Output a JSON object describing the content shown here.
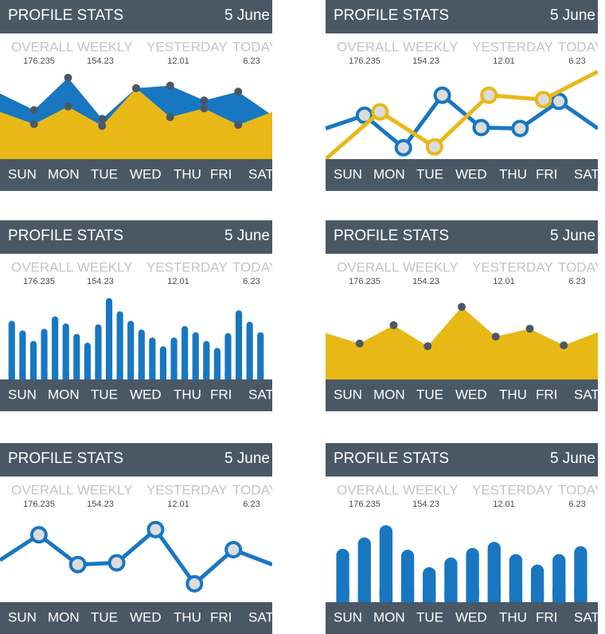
{
  "chart_data": [
    {
      "type": "area",
      "title": "PROFILE STATS",
      "date": "5 June",
      "stats": {
        "labels": [
          "OVERALL",
          "WEEKLY",
          "YESTERDAY",
          "TODAY"
        ],
        "values": [
          176.235,
          154.23,
          12.01,
          6.23
        ]
      },
      "day_labels": [
        "SUN",
        "MON",
        "TUE",
        "WED",
        "THU",
        "FRI",
        "SAT"
      ],
      "ylim": [
        0,
        100
      ],
      "series": [
        {
          "color": "#1877c1",
          "values": [
            75,
            56,
            93,
            46,
            81,
            84,
            67,
            77,
            50
          ]
        },
        {
          "color": "#e8b817",
          "values": [
            54,
            40,
            60,
            38,
            81,
            48,
            58,
            39,
            54
          ]
        }
      ]
    },
    {
      "type": "line",
      "title": "PROFILE STATS",
      "date": "5 June",
      "stats": {
        "labels": [
          "OVERALL",
          "WEEKLY",
          "YESTERDAY",
          "TODAY"
        ],
        "values": [
          176.235,
          154.23,
          12.01,
          6.23
        ]
      },
      "day_labels": [
        "SUN",
        "MON",
        "TUE",
        "WED",
        "THU",
        "FRI",
        "SAT"
      ],
      "ylim": [
        0,
        100
      ],
      "series": [
        {
          "color": "#1877c1",
          "values": [
            35,
            50,
            13,
            73,
            36,
            35,
            66,
            35
          ]
        },
        {
          "color": "#e8b817",
          "values": [
            0,
            54,
            14,
            73,
            68,
            100
          ]
        }
      ]
    },
    {
      "type": "bar",
      "title": "PROFILE STATS",
      "date": "5 June",
      "stats": {
        "labels": [
          "OVERALL",
          "WEEKLY",
          "YESTERDAY",
          "TODAY"
        ],
        "values": [
          176.235,
          154.23,
          12.01,
          6.23
        ]
      },
      "day_labels": [
        "SUN",
        "MON",
        "TUE",
        "WED",
        "THU",
        "FRI",
        "SAT"
      ],
      "ylim": [
        0,
        100
      ],
      "series": [
        {
          "color": "#1877c1",
          "values": [
            67,
            56,
            44,
            58,
            72,
            64,
            52,
            42,
            63,
            93,
            78,
            67,
            57,
            48,
            38,
            48,
            61,
            54,
            44,
            36,
            53,
            79,
            66,
            54
          ]
        }
      ]
    },
    {
      "type": "area",
      "title": "PROFILE STATS",
      "date": "5 June",
      "stats": {
        "labels": [
          "OVERALL",
          "WEEKLY",
          "YESTERDAY",
          "TODAY"
        ],
        "values": [
          176.235,
          154.23,
          12.01,
          6.23
        ]
      },
      "day_labels": [
        "SUN",
        "MON",
        "TUE",
        "WED",
        "THU",
        "FRI",
        "SAT"
      ],
      "ylim": [
        0,
        100
      ],
      "series": [
        {
          "color": "#e8b817",
          "values": [
            53,
            41,
            62,
            38,
            83,
            49,
            58,
            39,
            54
          ]
        }
      ]
    },
    {
      "type": "line",
      "title": "PROFILE STATS",
      "date": "5 June",
      "stats": {
        "labels": [
          "OVERALL",
          "WEEKLY",
          "YESTERDAY",
          "TODAY"
        ],
        "values": [
          176.235,
          154.23,
          12.01,
          6.23
        ]
      },
      "day_labels": [
        "SUN",
        "MON",
        "TUE",
        "WED",
        "THU",
        "FRI",
        "SAT"
      ],
      "ylim": [
        0,
        100
      ],
      "series": [
        {
          "color": "#1877c1",
          "values": [
            48,
            77,
            43,
            45,
            83,
            21,
            60,
            43
          ]
        }
      ]
    },
    {
      "type": "bar",
      "title": "PROFILE STATS",
      "date": "5 June",
      "stats": {
        "labels": [
          "OVERALL",
          "WEEKLY",
          "YESTERDAY",
          "TODAY"
        ],
        "values": [
          176.235,
          154.23,
          12.01,
          6.23
        ]
      },
      "day_labels": [
        "SUN",
        "MON",
        "TUE",
        "WED",
        "THU",
        "FRI",
        "SAT"
      ],
      "ylim": [
        0,
        100
      ],
      "series": [
        {
          "color": "#1877c1",
          "values": [
            61,
            74,
            88,
            60,
            40,
            51,
            62,
            69,
            55,
            43,
            55,
            64
          ]
        }
      ]
    }
  ]
}
